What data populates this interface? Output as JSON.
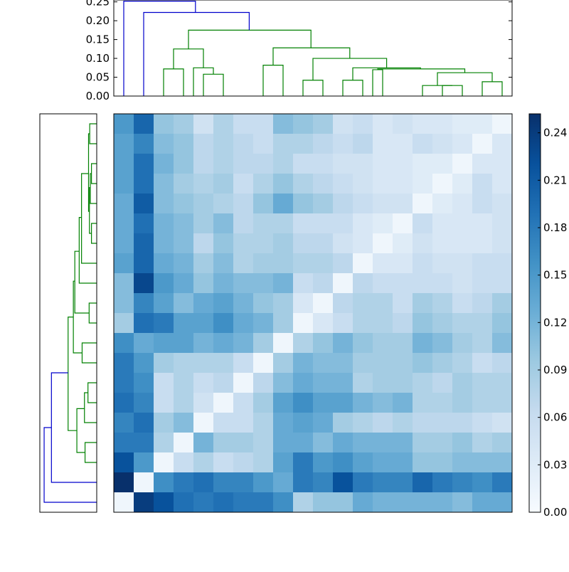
{
  "chart_data": {
    "type": "heatmap",
    "title": "",
    "xlabel": "",
    "ylabel": "",
    "matrix_size": 20,
    "top_dendrogram": {
      "y_ticks": [
        "0.00",
        "0.05",
        "0.10",
        "0.15",
        "0.20",
        "0.25"
      ],
      "ylim": [
        0,
        0.255
      ],
      "links": [
        {
          "left": 2,
          "right": 3,
          "height": 0.072,
          "color": "#008000"
        },
        {
          "left": 4,
          "right": 5,
          "height": 0.058,
          "color": "#008000"
        },
        {
          "left": 3.5,
          "right": 4.5,
          "height": 0.075,
          "color": "#008000"
        },
        {
          "left": 2.5,
          "right": 4,
          "height": 0.125,
          "color": "#008000"
        },
        {
          "left": 7,
          "right": 8,
          "height": 0.082,
          "color": "#008000"
        },
        {
          "left": 9,
          "right": 10,
          "height": 0.042,
          "color": "#008000"
        },
        {
          "left": 11,
          "right": 12,
          "height": 0.042,
          "color": "#008000"
        },
        {
          "left": 12.5,
          "right": 13,
          "height": 0.07,
          "color": "#008000"
        },
        {
          "left": 16,
          "right": 17,
          "height": 0.028,
          "color": "#008000"
        },
        {
          "left": 15,
          "right": 16.5,
          "height": 0.028,
          "color": "#008000"
        },
        {
          "left": 18,
          "right": 19,
          "height": 0.038,
          "color": "#008000"
        },
        {
          "left": 15.75,
          "right": 18.5,
          "height": 0.062,
          "color": "#008000"
        },
        {
          "left": 12.75,
          "right": 17.125,
          "height": 0.072,
          "color": "#008000"
        },
        {
          "left": 11.5,
          "right": 14.9,
          "height": 0.075,
          "color": "#008000"
        },
        {
          "left": 9.5,
          "right": 13.2,
          "height": 0.1,
          "color": "#008000"
        },
        {
          "left": 7.5,
          "right": 11.35,
          "height": 0.128,
          "color": "#008000"
        },
        {
          "left": 3.25,
          "right": 9.4,
          "height": 0.175,
          "color": "#008000"
        },
        {
          "left": 1,
          "right": 6.3,
          "height": 0.222,
          "color": "#0000cc"
        },
        {
          "left": 0,
          "right": 3.6,
          "height": 0.252,
          "color": "#0000cc"
        }
      ]
    },
    "left_dendrogram": {
      "links": [
        {
          "top": 0,
          "bottom": 1,
          "depth": 0.024,
          "color": "#008000"
        },
        {
          "top": 2,
          "bottom": 3,
          "depth": 0.018,
          "color": "#008000"
        },
        {
          "top": 2.5,
          "bottom": 4,
          "depth": 0.022,
          "color": "#008000"
        },
        {
          "top": 5,
          "bottom": 6,
          "depth": 0.018,
          "color": "#008000"
        },
        {
          "top": 3.2,
          "bottom": 5.5,
          "depth": 0.025,
          "color": "#008000"
        },
        {
          "top": 0.5,
          "bottom": 4.4,
          "depth": 0.028,
          "color": "#008000"
        },
        {
          "top": 2.5,
          "bottom": 7,
          "depth": 0.052,
          "color": "#008000"
        },
        {
          "top": 4.7,
          "bottom": 8,
          "depth": 0.06,
          "color": "#008000"
        },
        {
          "top": 9,
          "bottom": 10,
          "depth": 0.026,
          "color": "#008000"
        },
        {
          "top": 6.4,
          "bottom": 9.5,
          "depth": 0.075,
          "color": "#008000"
        },
        {
          "top": 11,
          "bottom": 12,
          "depth": 0.05,
          "color": "#008000"
        },
        {
          "top": 7.9,
          "bottom": 11.5,
          "depth": 0.08,
          "color": "#008000"
        },
        {
          "top": 13,
          "bottom": 14,
          "depth": 0.03,
          "color": "#008000"
        },
        {
          "top": 13.5,
          "bottom": 15,
          "depth": 0.042,
          "color": "#008000"
        },
        {
          "top": 16,
          "bottom": 17,
          "depth": 0.04,
          "color": "#008000"
        },
        {
          "top": 14.3,
          "bottom": 16.5,
          "depth": 0.068,
          "color": "#008000"
        },
        {
          "top": 9.7,
          "bottom": 15.4,
          "depth": 0.098,
          "color": "#008000"
        },
        {
          "top": 12.5,
          "bottom": 18,
          "depth": 0.155,
          "color": "#0000cc"
        },
        {
          "top": 15.25,
          "bottom": 19,
          "depth": 0.18,
          "color": "#0000cc"
        }
      ]
    },
    "colorbar": {
      "ticks": [
        "0.00",
        "0.03",
        "0.06",
        "0.09",
        "0.12",
        "0.15",
        "0.18",
        "0.21",
        "0.24"
      ],
      "vmin": 0,
      "vmax": 0.252,
      "cmap": [
        "#f7fbff",
        "#deebf7",
        "#c6dbef",
        "#9ecae1",
        "#6baed6",
        "#4292c6",
        "#2171b5",
        "#08519c",
        "#08306b"
      ]
    },
    "values": [
      [
        0.15,
        0.2,
        0.1,
        0.09,
        0.05,
        0.08,
        0.06,
        0.06,
        0.11,
        0.1,
        0.09,
        0.05,
        0.06,
        0.04,
        0.05,
        0.04,
        0.04,
        0.03,
        0.03,
        0.01
      ],
      [
        0.14,
        0.17,
        0.11,
        0.1,
        0.07,
        0.08,
        0.07,
        0.06,
        0.08,
        0.08,
        0.07,
        0.06,
        0.07,
        0.04,
        0.04,
        0.06,
        0.05,
        0.04,
        0.01,
        0.04
      ],
      [
        0.14,
        0.19,
        0.12,
        0.1,
        0.07,
        0.08,
        0.07,
        0.07,
        0.08,
        0.06,
        0.06,
        0.05,
        0.05,
        0.04,
        0.04,
        0.03,
        0.03,
        0.01,
        0.04,
        0.04
      ],
      [
        0.14,
        0.19,
        0.11,
        0.09,
        0.08,
        0.09,
        0.06,
        0.08,
        0.1,
        0.08,
        0.07,
        0.06,
        0.05,
        0.04,
        0.04,
        0.03,
        0.01,
        0.03,
        0.06,
        0.04
      ],
      [
        0.13,
        0.21,
        0.11,
        0.1,
        0.09,
        0.08,
        0.07,
        0.1,
        0.13,
        0.1,
        0.09,
        0.07,
        0.06,
        0.05,
        0.05,
        0.01,
        0.03,
        0.04,
        0.06,
        0.05
      ],
      [
        0.13,
        0.19,
        0.12,
        0.11,
        0.09,
        0.11,
        0.07,
        0.08,
        0.08,
        0.06,
        0.06,
        0.06,
        0.04,
        0.03,
        0.01,
        0.06,
        0.04,
        0.04,
        0.04,
        0.05
      ],
      [
        0.13,
        0.2,
        0.12,
        0.11,
        0.07,
        0.1,
        0.08,
        0.08,
        0.09,
        0.07,
        0.07,
        0.05,
        0.04,
        0.01,
        0.03,
        0.05,
        0.04,
        0.04,
        0.04,
        0.05
      ],
      [
        0.14,
        0.2,
        0.13,
        0.12,
        0.09,
        0.11,
        0.08,
        0.09,
        0.09,
        0.08,
        0.08,
        0.07,
        0.01,
        0.04,
        0.04,
        0.06,
        0.05,
        0.05,
        0.06,
        0.06
      ],
      [
        0.11,
        0.23,
        0.15,
        0.13,
        0.1,
        0.12,
        0.11,
        0.11,
        0.12,
        0.06,
        0.07,
        0.01,
        0.07,
        0.06,
        0.06,
        0.06,
        0.06,
        0.05,
        0.06,
        0.06
      ],
      [
        0.11,
        0.17,
        0.14,
        0.11,
        0.13,
        0.14,
        0.12,
        0.1,
        0.09,
        0.04,
        0.01,
        0.07,
        0.08,
        0.08,
        0.06,
        0.09,
        0.08,
        0.06,
        0.07,
        0.09
      ],
      [
        0.09,
        0.19,
        0.18,
        0.14,
        0.14,
        0.16,
        0.13,
        0.12,
        0.09,
        0.01,
        0.04,
        0.06,
        0.08,
        0.08,
        0.07,
        0.1,
        0.09,
        0.08,
        0.08,
        0.1
      ],
      [
        0.16,
        0.13,
        0.14,
        0.14,
        0.12,
        0.13,
        0.12,
        0.09,
        0.01,
        0.08,
        0.1,
        0.12,
        0.1,
        0.09,
        0.09,
        0.12,
        0.11,
        0.09,
        0.08,
        0.11
      ],
      [
        0.18,
        0.15,
        0.09,
        0.08,
        0.08,
        0.08,
        0.06,
        0.01,
        0.09,
        0.12,
        0.11,
        0.11,
        0.09,
        0.09,
        0.09,
        0.1,
        0.09,
        0.08,
        0.06,
        0.07
      ],
      [
        0.18,
        0.16,
        0.06,
        0.08,
        0.06,
        0.07,
        0.01,
        0.07,
        0.11,
        0.13,
        0.12,
        0.12,
        0.08,
        0.09,
        0.09,
        0.08,
        0.07,
        0.09,
        0.08,
        0.08
      ],
      [
        0.19,
        0.17,
        0.06,
        0.08,
        0.05,
        0.01,
        0.06,
        0.09,
        0.14,
        0.16,
        0.14,
        0.14,
        0.12,
        0.11,
        0.12,
        0.08,
        0.08,
        0.09,
        0.08,
        0.08
      ],
      [
        0.17,
        0.19,
        0.09,
        0.11,
        0.01,
        0.06,
        0.06,
        0.08,
        0.13,
        0.14,
        0.13,
        0.09,
        0.08,
        0.07,
        0.08,
        0.07,
        0.07,
        0.07,
        0.06,
        0.05
      ],
      [
        0.18,
        0.18,
        0.08,
        0.01,
        0.12,
        0.09,
        0.09,
        0.08,
        0.13,
        0.13,
        0.11,
        0.13,
        0.12,
        0.12,
        0.12,
        0.09,
        0.09,
        0.1,
        0.08,
        0.09
      ],
      [
        0.22,
        0.15,
        0.01,
        0.06,
        0.08,
        0.06,
        0.07,
        0.08,
        0.14,
        0.18,
        0.15,
        0.16,
        0.14,
        0.13,
        0.13,
        0.1,
        0.1,
        0.11,
        0.11,
        0.11
      ],
      [
        0.252,
        0.01,
        0.16,
        0.18,
        0.19,
        0.17,
        0.17,
        0.15,
        0.13,
        0.18,
        0.17,
        0.22,
        0.18,
        0.17,
        0.17,
        0.2,
        0.18,
        0.17,
        0.16,
        0.18
      ],
      [
        0.01,
        0.24,
        0.22,
        0.19,
        0.18,
        0.19,
        0.18,
        0.18,
        0.16,
        0.08,
        0.1,
        0.1,
        0.13,
        0.12,
        0.12,
        0.12,
        0.12,
        0.11,
        0.13,
        0.13
      ]
    ]
  }
}
